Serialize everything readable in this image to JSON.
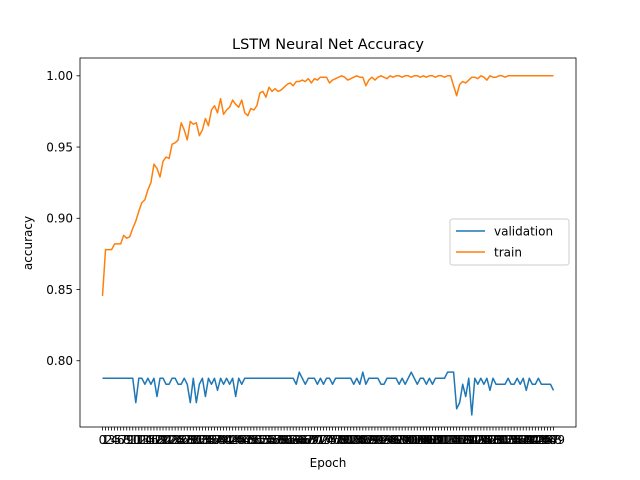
{
  "chart_data": {
    "type": "line",
    "title": "LSTM Neural Net Accuracy",
    "xlabel": "Epoch",
    "ylabel": "accuracy",
    "xlim": [
      0,
      150
    ],
    "ylim": [
      0.7535,
      1.0125
    ],
    "yticks": [
      0.8,
      0.85,
      0.9,
      0.95,
      1.0
    ],
    "ytick_labels": [
      "0.80",
      "0.85",
      "0.90",
      "0.95",
      "1.00"
    ],
    "xtick_count": 150,
    "xtick_note": "one overlapping integer tick label per epoch (0–149)",
    "grid": false,
    "legend": {
      "position": "center-right",
      "entries": [
        "validation",
        "train"
      ]
    },
    "colors": {
      "validation": "#1f77b4",
      "train": "#ff7f0e"
    },
    "series": [
      {
        "name": "validation",
        "color": "#1f77b4",
        "values": [
          0.7877,
          0.7877,
          0.7877,
          0.7877,
          0.7877,
          0.7877,
          0.7877,
          0.7877,
          0.7877,
          0.7877,
          0.7877,
          0.7706,
          0.7877,
          0.7877,
          0.7835,
          0.7877,
          0.7835,
          0.7877,
          0.7749,
          0.7877,
          0.7877,
          0.7835,
          0.7835,
          0.7877,
          0.7877,
          0.7835,
          0.7835,
          0.7877,
          0.7835,
          0.7706,
          0.7877,
          0.7706,
          0.7835,
          0.7877,
          0.7749,
          0.7877,
          0.7835,
          0.7877,
          0.7792,
          0.7877,
          0.7835,
          0.7877,
          0.7835,
          0.7877,
          0.7749,
          0.7877,
          0.7835,
          0.7877,
          0.7877,
          0.7877,
          0.7877,
          0.7877,
          0.7877,
          0.7877,
          0.7877,
          0.7877,
          0.7877,
          0.7877,
          0.7877,
          0.7877,
          0.7877,
          0.7877,
          0.7877,
          0.7877,
          0.7835,
          0.792,
          0.7877,
          0.7835,
          0.7877,
          0.7877,
          0.7877,
          0.7835,
          0.7877,
          0.7835,
          0.7877,
          0.7877,
          0.7835,
          0.7877,
          0.7877,
          0.7877,
          0.7877,
          0.7877,
          0.7877,
          0.7835,
          0.7877,
          0.7835,
          0.792,
          0.7835,
          0.7877,
          0.7877,
          0.7877,
          0.7877,
          0.7835,
          0.7835,
          0.7877,
          0.7877,
          0.7877,
          0.7877,
          0.7835,
          0.7877,
          0.7835,
          0.7877,
          0.792,
          0.7877,
          0.7835,
          0.7877,
          0.7877,
          0.7835,
          0.7877,
          0.7835,
          0.7877,
          0.7877,
          0.7877,
          0.7877,
          0.792,
          0.792,
          0.792,
          0.7663,
          0.7706,
          0.7835,
          0.7749,
          0.7877,
          0.762,
          0.7877,
          0.7835,
          0.7877,
          0.7835,
          0.7877,
          0.7792,
          0.7877,
          0.7835,
          0.7835,
          0.7835,
          0.7835,
          0.7877,
          0.7835,
          0.7835,
          0.7877,
          0.7835,
          0.7877,
          0.7792,
          0.7877,
          0.7835,
          0.7835,
          0.7877,
          0.7835,
          0.7835,
          0.7835,
          0.7835,
          0.7792
        ]
      },
      {
        "name": "train",
        "color": "#ff7f0e",
        "values": [
          0.8455,
          0.878,
          0.878,
          0.878,
          0.882,
          0.882,
          0.882,
          0.888,
          0.886,
          0.887,
          0.893,
          0.898,
          0.905,
          0.911,
          0.913,
          0.92,
          0.925,
          0.938,
          0.935,
          0.929,
          0.94,
          0.943,
          0.942,
          0.952,
          0.953,
          0.955,
          0.967,
          0.962,
          0.955,
          0.968,
          0.966,
          0.967,
          0.958,
          0.962,
          0.97,
          0.965,
          0.976,
          0.979,
          0.974,
          0.984,
          0.973,
          0.976,
          0.978,
          0.983,
          0.98,
          0.978,
          0.983,
          0.974,
          0.972,
          0.977,
          0.976,
          0.979,
          0.988,
          0.989,
          0.985,
          0.992,
          0.989,
          0.991,
          0.989,
          0.99,
          0.992,
          0.994,
          0.995,
          0.993,
          0.996,
          0.996,
          0.997,
          0.996,
          0.998,
          0.995,
          0.998,
          0.997,
          0.999,
          0.999,
          0.999,
          0.995,
          0.997,
          0.998,
          0.999,
          1.0,
          0.999,
          0.997,
          0.998,
          0.999,
          1.0,
          0.999,
          0.999,
          0.993,
          0.997,
          0.999,
          0.997,
          0.999,
          1.0,
          0.999,
          0.998,
          1.0,
          0.999,
          1.0,
          1.0,
          0.999,
          1.0,
          1.0,
          0.999,
          1.0,
          1.0,
          0.999,
          1.0,
          0.999,
          1.0,
          1.0,
          0.999,
          1.0,
          1.0,
          0.999,
          1.0,
          1.0,
          0.993,
          0.986,
          0.994,
          0.996,
          0.995,
          0.997,
          0.999,
          0.999,
          0.998,
          1.0,
          0.999,
          0.997,
          1.0,
          0.999,
          0.999,
          1.0,
          1.0,
          0.999,
          1.0,
          1.0,
          1.0,
          1.0,
          1.0,
          1.0,
          1.0,
          1.0,
          1.0,
          1.0,
          1.0,
          1.0,
          1.0,
          1.0,
          1.0,
          1.0
        ]
      }
    ]
  }
}
